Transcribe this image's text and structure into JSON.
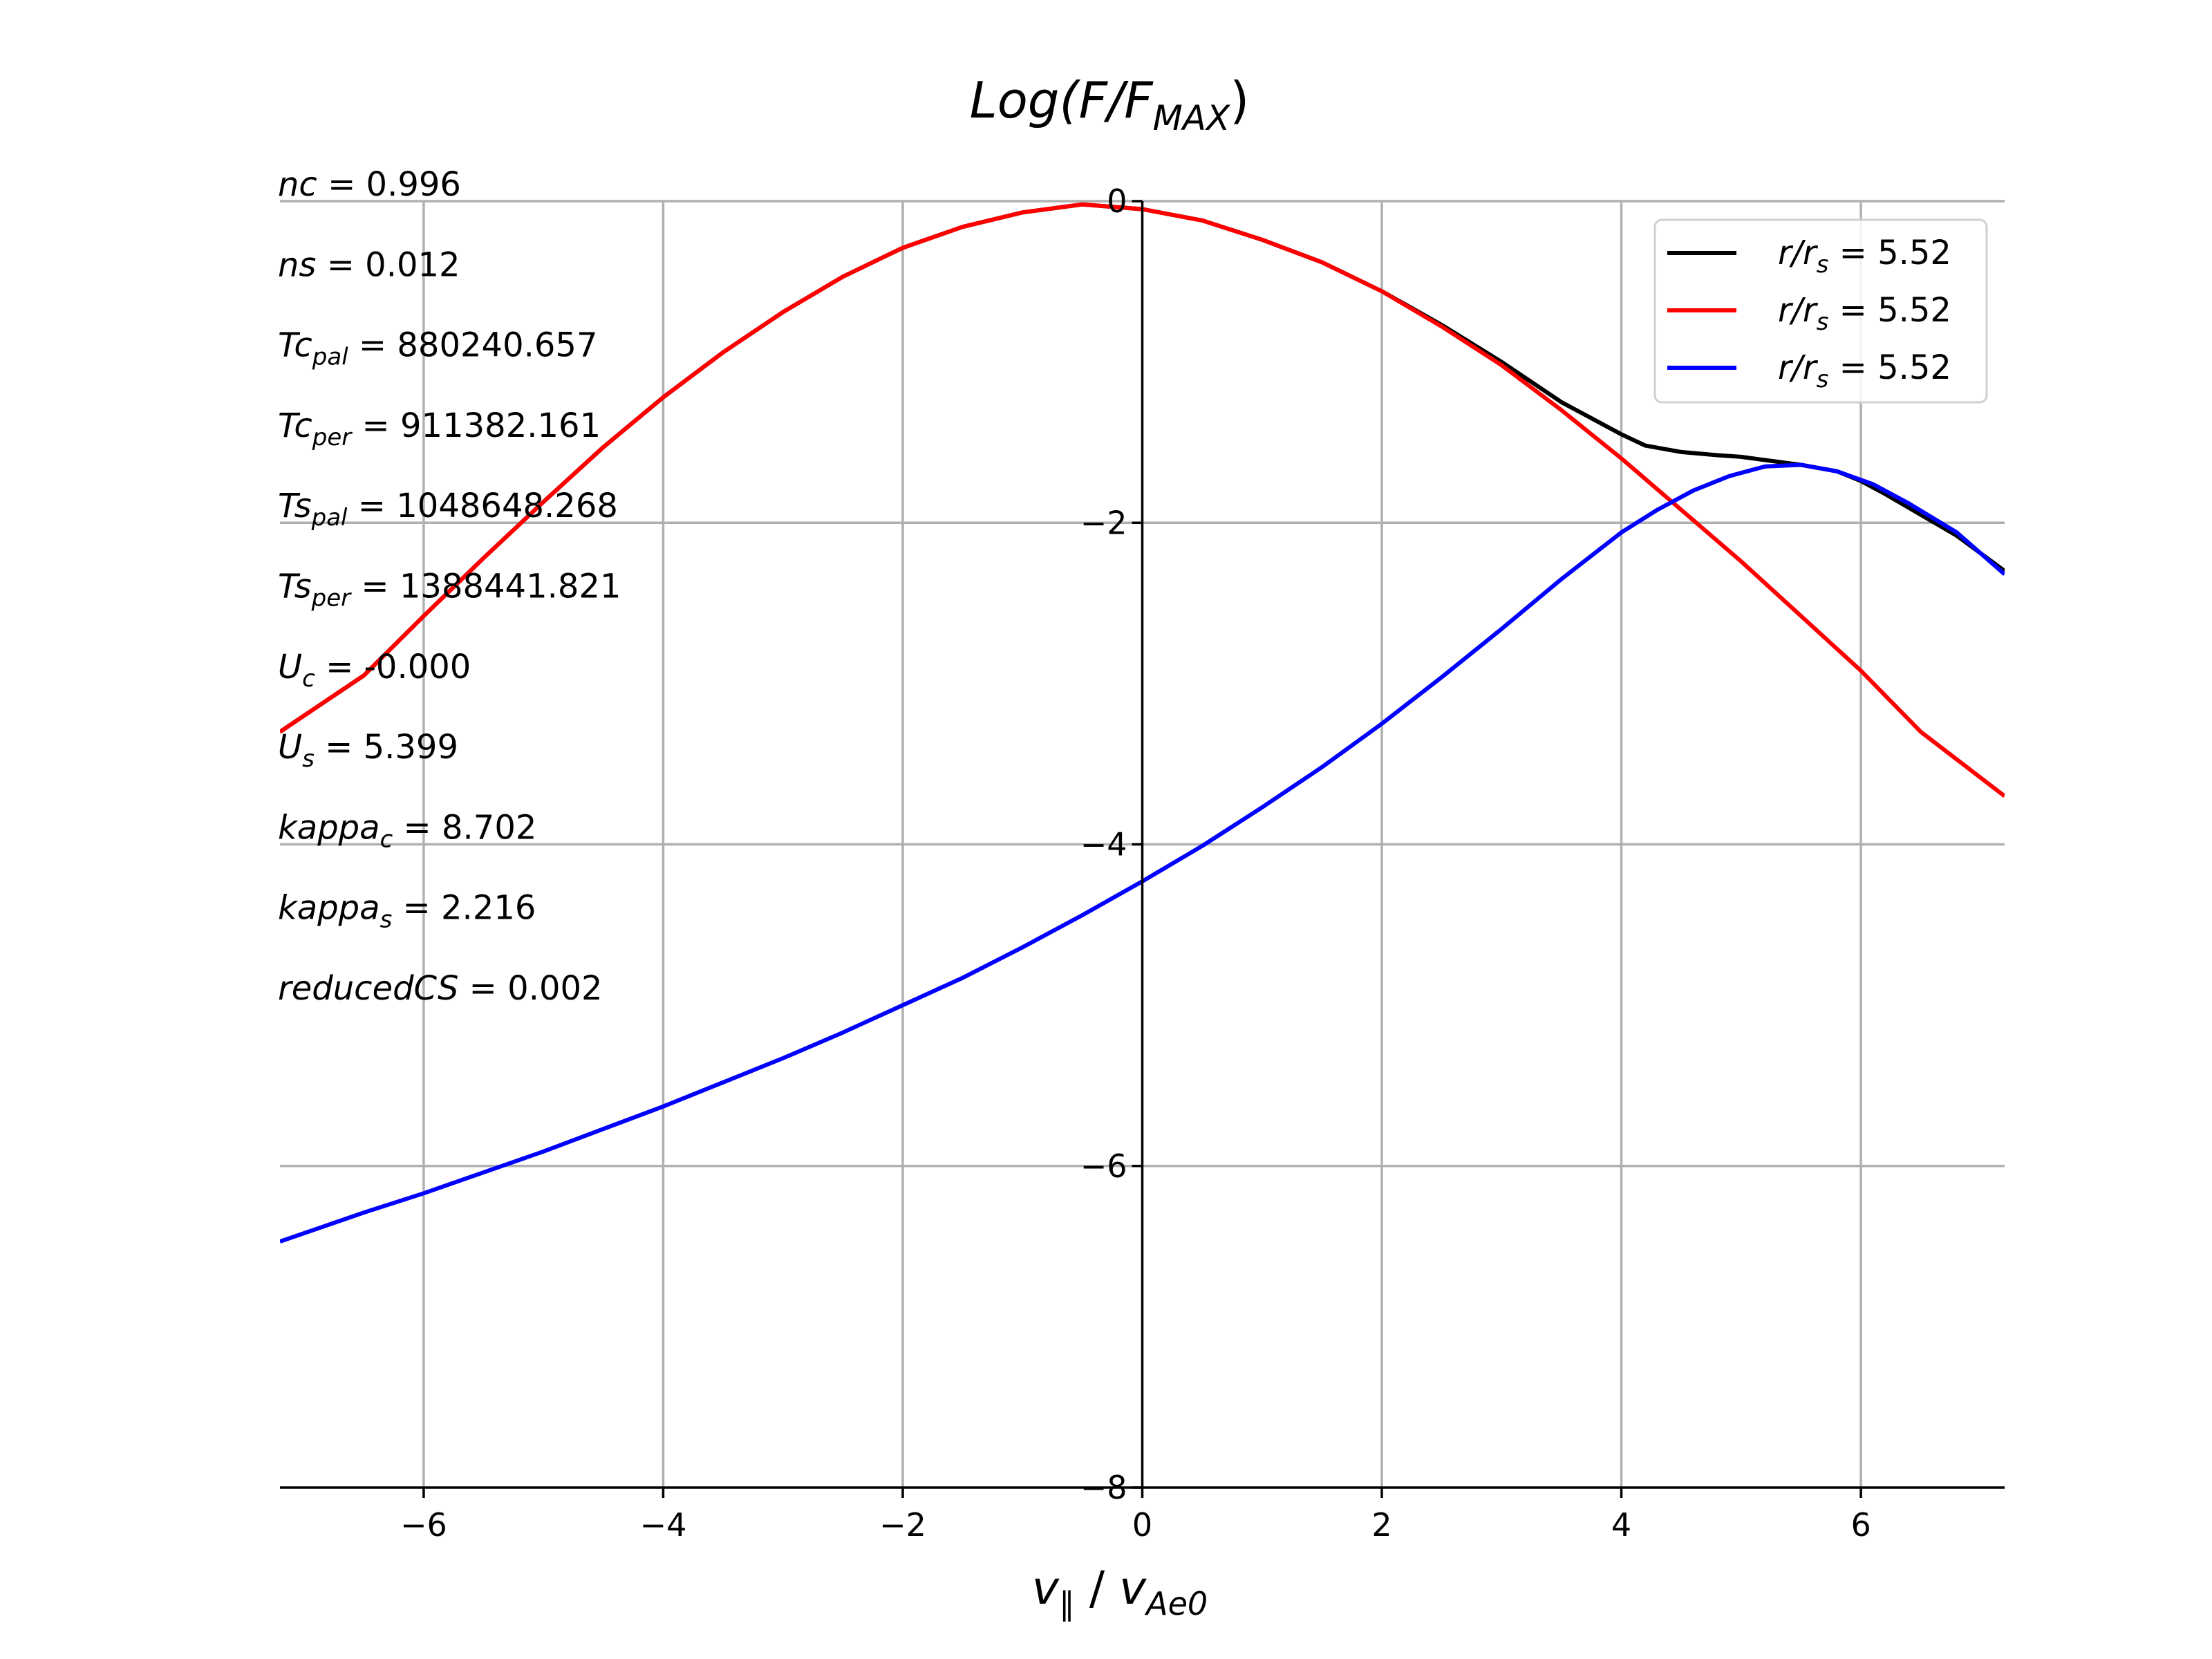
{
  "chart_data": {
    "type": "line",
    "title": "Log(F/F_MAX)",
    "xlabel": "v_∥ / v_Ae0",
    "ylabel": "",
    "xlim": [
      -7.2,
      7.2
    ],
    "ylim": [
      -8,
      0
    ],
    "xticks": [
      -6,
      -4,
      -2,
      0,
      2,
      4,
      6
    ],
    "yticks": [
      0,
      -2,
      -4,
      -6,
      -8
    ],
    "xtick_labels": [
      "−6",
      "−4",
      "−2",
      "0",
      "2",
      "4",
      "6"
    ],
    "ytick_labels": [
      "0",
      "−2",
      "−4",
      "−6",
      "−8"
    ],
    "grid": true,
    "legend_position": "top-right",
    "series": [
      {
        "name": "r/r_s = 5.52",
        "color": "#000000",
        "x": [
          -7.2,
          -6.5,
          -6,
          -5.5,
          -5,
          -4.5,
          -4,
          -3.5,
          -3,
          -2.5,
          -2,
          -1.5,
          -1,
          -0.5,
          0,
          0.5,
          1,
          1.5,
          2,
          2.5,
          3,
          3.5,
          4,
          4.2,
          4.5,
          4.8,
          5,
          5.3,
          5.5,
          5.8,
          6,
          6.2,
          6.5,
          6.8,
          7.2
        ],
        "y": [
          -3.3,
          -2.95,
          -2.58,
          -2.22,
          -1.87,
          -1.53,
          -1.22,
          -0.94,
          -0.69,
          -0.47,
          -0.29,
          -0.16,
          -0.07,
          -0.02,
          -0.05,
          -0.12,
          -0.24,
          -0.38,
          -0.56,
          -0.77,
          -1.0,
          -1.25,
          -1.45,
          -1.52,
          -1.56,
          -1.58,
          -1.59,
          -1.62,
          -1.64,
          -1.68,
          -1.74,
          -1.82,
          -1.95,
          -2.08,
          -2.3
        ]
      },
      {
        "name": "r/r_s = 5.52",
        "color": "#ff0000",
        "x": [
          -7.2,
          -6.5,
          -6,
          -5.5,
          -5,
          -4.5,
          -4,
          -3.5,
          -3,
          -2.5,
          -2,
          -1.5,
          -1,
          -0.5,
          0,
          0.5,
          1,
          1.5,
          2,
          2.5,
          3,
          3.5,
          4,
          4.5,
          5,
          5.5,
          6,
          6.5,
          7.2
        ],
        "y": [
          -3.3,
          -2.95,
          -2.58,
          -2.22,
          -1.87,
          -1.53,
          -1.22,
          -0.94,
          -0.69,
          -0.47,
          -0.29,
          -0.16,
          -0.07,
          -0.02,
          -0.05,
          -0.12,
          -0.24,
          -0.38,
          -0.56,
          -0.78,
          -1.02,
          -1.3,
          -1.6,
          -1.92,
          -2.24,
          -2.58,
          -2.92,
          -3.3,
          -3.7
        ]
      },
      {
        "name": "r/r_s = 5.52",
        "color": "#0000ff",
        "x": [
          -7.2,
          -6.5,
          -6,
          -5.5,
          -5,
          -4.5,
          -4,
          -3.5,
          -3,
          -2.5,
          -2,
          -1.5,
          -1,
          -0.5,
          0,
          0.5,
          1,
          1.5,
          2,
          2.5,
          3,
          3.5,
          4,
          4.3,
          4.6,
          4.9,
          5.2,
          5.5,
          5.8,
          6.1,
          6.4,
          6.8,
          7.2
        ],
        "y": [
          -6.47,
          -6.29,
          -6.17,
          -6.04,
          -5.91,
          -5.77,
          -5.63,
          -5.48,
          -5.33,
          -5.17,
          -5.0,
          -4.83,
          -4.64,
          -4.44,
          -4.23,
          -4.01,
          -3.77,
          -3.52,
          -3.25,
          -2.96,
          -2.66,
          -2.35,
          -2.06,
          -1.92,
          -1.8,
          -1.71,
          -1.65,
          -1.64,
          -1.68,
          -1.76,
          -1.88,
          -2.06,
          -2.32
        ]
      }
    ],
    "legend_entries": [
      "r/r_s = 5.52",
      "r/r_s = 5.52",
      "r/r_s = 5.52"
    ],
    "annotations": [
      {
        "base": "nc",
        "sub": "",
        "value": "0.996"
      },
      {
        "base": "ns",
        "sub": "",
        "value": "0.012"
      },
      {
        "base": "Tc",
        "sub": "pal",
        "value": "880240.657"
      },
      {
        "base": "Tc",
        "sub": "per",
        "value": "911382.161"
      },
      {
        "base": "Ts",
        "sub": "pal",
        "value": "1048648.268"
      },
      {
        "base": "Ts",
        "sub": "per",
        "value": "1388441.821"
      },
      {
        "base": "U",
        "sub": "c",
        "value": "-0.000"
      },
      {
        "base": "U",
        "sub": "s",
        "value": "5.399"
      },
      {
        "base": "kappa",
        "sub": "c",
        "value": "8.702"
      },
      {
        "base": "kappa",
        "sub": "s",
        "value": "2.216"
      },
      {
        "base": "reducedCS",
        "sub": "",
        "value": "0.002"
      }
    ]
  }
}
